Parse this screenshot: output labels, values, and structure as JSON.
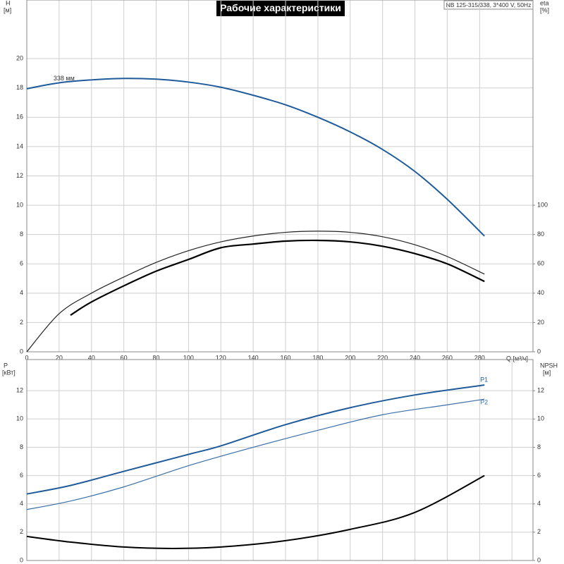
{
  "chart_data": [
    {
      "type": "line",
      "title": "Рабочие характеристики",
      "subtitle": "NB 125-315/338, 3*400 V, 50Hz",
      "xlabel": "Q [м³/ч]",
      "ylabel": "H",
      "yunit": "[м]",
      "y2label": "eta",
      "y2unit": "[%]",
      "xlim": [
        0,
        313
      ],
      "ylim": [
        0,
        24
      ],
      "y2lim": [
        0,
        240
      ],
      "xticks": [
        0,
        20,
        40,
        60,
        80,
        100,
        120,
        140,
        160,
        180,
        200,
        220,
        240,
        260,
        280
      ],
      "yticks": [
        0,
        2,
        4,
        6,
        8,
        10,
        12,
        14,
        16,
        18,
        20
      ],
      "y2ticks": [
        0,
        20,
        40,
        60,
        80,
        100
      ],
      "grid": true,
      "series": [
        {
          "name": "338 мм",
          "color": "#1f5b9a",
          "width": 2,
          "x": [
            0,
            20,
            40,
            60,
            80,
            100,
            120,
            140,
            160,
            180,
            200,
            220,
            240,
            260,
            283
          ],
          "values": [
            17.95,
            18.35,
            18.55,
            18.65,
            18.6,
            18.4,
            18.05,
            17.5,
            16.85,
            16.0,
            15.0,
            13.8,
            12.3,
            10.4,
            7.9
          ]
        },
        {
          "color": "#222222",
          "width": 1.2,
          "axis": "y2",
          "x": [
            0,
            20,
            40,
            60,
            80,
            100,
            120,
            140,
            160,
            180,
            200,
            220,
            240,
            260,
            283
          ],
          "values": [
            0,
            26,
            40,
            51,
            61,
            69,
            75,
            79,
            81.5,
            82.3,
            81.5,
            78.5,
            73,
            65,
            53
          ]
        },
        {
          "color": "#000000",
          "width": 2.2,
          "axis": "y2",
          "x": [
            27,
            40,
            60,
            80,
            100,
            120,
            140,
            160,
            180,
            200,
            220,
            240,
            260,
            283
          ],
          "values": [
            25,
            34,
            45,
            55,
            63,
            71,
            73.5,
            75.5,
            76,
            75,
            72,
            67,
            60,
            48
          ]
        }
      ]
    },
    {
      "type": "line",
      "ylabel": "P",
      "yunit": "[кВт]",
      "y2label": "NPSH",
      "y2unit": "[м]",
      "xlim": [
        0,
        313
      ],
      "ylim": [
        0,
        14.2
      ],
      "y2lim": [
        0,
        14.2
      ],
      "xticks": [
        0,
        20,
        40,
        60,
        80,
        100,
        120,
        140,
        160,
        180,
        200,
        220,
        240,
        260,
        280,
        300
      ],
      "yticks": [
        0,
        2,
        4,
        6,
        8,
        10,
        12
      ],
      "y2ticks": [
        0,
        2,
        4,
        6,
        8,
        10,
        12
      ],
      "grid": true,
      "show_xtick_labels": false,
      "series": [
        {
          "name": "P1",
          "color": "#1f5b9a",
          "width": 2,
          "x": [
            0,
            27,
            60,
            100,
            120,
            160,
            200,
            240,
            283
          ],
          "values": [
            4.7,
            5.3,
            6.3,
            7.5,
            8.1,
            9.6,
            10.8,
            11.7,
            12.4
          ]
        },
        {
          "name": "P2",
          "color": "#3a6fa8",
          "width": 1.2,
          "x": [
            0,
            27,
            60,
            100,
            140,
            180,
            220,
            260,
            283
          ],
          "values": [
            3.6,
            4.2,
            5.2,
            6.7,
            8.0,
            9.2,
            10.3,
            11.0,
            11.4
          ]
        },
        {
          "color": "#000000",
          "width": 2,
          "axis": "y2",
          "x": [
            0,
            27,
            60,
            90,
            120,
            160,
            200,
            240,
            283
          ],
          "values": [
            1.7,
            1.3,
            0.95,
            0.85,
            0.95,
            1.4,
            2.2,
            3.4,
            6.0
          ]
        }
      ]
    }
  ]
}
